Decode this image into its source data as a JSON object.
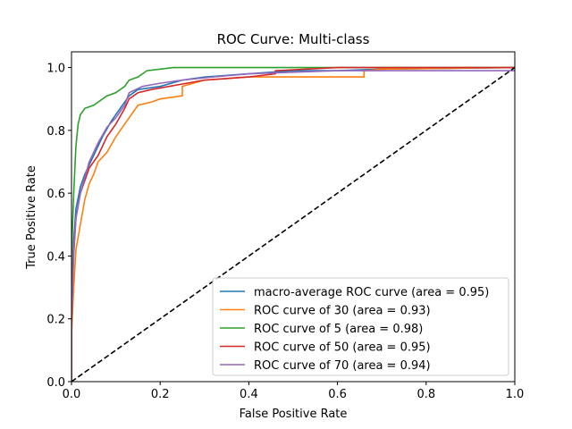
{
  "chart_data": {
    "type": "line",
    "title": "ROC Curve: Multi-class",
    "xlabel": "False Positive Rate",
    "ylabel": "True Positive Rate",
    "xlim": [
      0.0,
      1.0
    ],
    "ylim": [
      0.0,
      1.05
    ],
    "xticks": [
      "0.0",
      "0.2",
      "0.4",
      "0.6",
      "0.8",
      "1.0"
    ],
    "yticks": [
      "0.0",
      "0.2",
      "0.4",
      "0.6",
      "0.8",
      "1.0"
    ],
    "xtick_values": [
      0.0,
      0.2,
      0.4,
      0.6,
      0.8,
      1.0
    ],
    "ytick_values": [
      0.0,
      0.2,
      0.4,
      0.6,
      0.8,
      1.0
    ],
    "grid": false,
    "legend_position": "bottom-right",
    "diagonal": {
      "x": [
        0,
        1
      ],
      "y": [
        0,
        1
      ],
      "color": "#000000",
      "style": "dashed"
    },
    "series": [
      {
        "name": "macro-average ROC curve (area = 0.95)",
        "color": "#1f77b4",
        "points": [
          [
            0,
            0
          ],
          [
            0,
            0.3
          ],
          [
            0.005,
            0.45
          ],
          [
            0.01,
            0.55
          ],
          [
            0.02,
            0.62
          ],
          [
            0.03,
            0.66
          ],
          [
            0.05,
            0.72
          ],
          [
            0.07,
            0.78
          ],
          [
            0.09,
            0.83
          ],
          [
            0.11,
            0.87
          ],
          [
            0.13,
            0.91
          ],
          [
            0.15,
            0.93
          ],
          [
            0.2,
            0.94
          ],
          [
            0.25,
            0.96
          ],
          [
            0.3,
            0.97
          ],
          [
            0.4,
            0.98
          ],
          [
            0.5,
            0.99
          ],
          [
            0.6,
            0.99
          ],
          [
            0.7,
            0.995
          ],
          [
            1,
            1
          ]
        ]
      },
      {
        "name": "ROC curve of 30 (area = 0.93)",
        "color": "#ff7f0e",
        "points": [
          [
            0,
            0
          ],
          [
            0,
            0.15
          ],
          [
            0.005,
            0.3
          ],
          [
            0.01,
            0.42
          ],
          [
            0.02,
            0.5
          ],
          [
            0.03,
            0.58
          ],
          [
            0.04,
            0.63
          ],
          [
            0.05,
            0.66
          ],
          [
            0.06,
            0.7
          ],
          [
            0.08,
            0.73
          ],
          [
            0.1,
            0.78
          ],
          [
            0.12,
            0.82
          ],
          [
            0.14,
            0.86
          ],
          [
            0.15,
            0.88
          ],
          [
            0.18,
            0.89
          ],
          [
            0.2,
            0.9
          ],
          [
            0.25,
            0.91
          ],
          [
            0.25,
            0.94
          ],
          [
            0.3,
            0.96
          ],
          [
            0.4,
            0.97
          ],
          [
            0.5,
            0.97
          ],
          [
            0.66,
            0.97
          ],
          [
            0.66,
            0.99
          ],
          [
            0.7,
            0.995
          ],
          [
            1,
            1
          ]
        ]
      },
      {
        "name": "ROC curve of 5 (area = 0.98)",
        "color": "#2ca02c",
        "points": [
          [
            0,
            0
          ],
          [
            0,
            0.4
          ],
          [
            0.005,
            0.6
          ],
          [
            0.01,
            0.75
          ],
          [
            0.015,
            0.82
          ],
          [
            0.02,
            0.85
          ],
          [
            0.03,
            0.87
          ],
          [
            0.05,
            0.88
          ],
          [
            0.06,
            0.89
          ],
          [
            0.08,
            0.91
          ],
          [
            0.1,
            0.92
          ],
          [
            0.12,
            0.94
          ],
          [
            0.13,
            0.96
          ],
          [
            0.15,
            0.97
          ],
          [
            0.17,
            0.99
          ],
          [
            0.23,
            1.0
          ],
          [
            0.6,
            1.0
          ],
          [
            1,
            1
          ]
        ]
      },
      {
        "name": "ROC curve of 50 (area = 0.95)",
        "color": "#d62728",
        "points": [
          [
            0,
            0
          ],
          [
            0,
            0.2
          ],
          [
            0.005,
            0.42
          ],
          [
            0.01,
            0.52
          ],
          [
            0.02,
            0.6
          ],
          [
            0.03,
            0.64
          ],
          [
            0.04,
            0.68
          ],
          [
            0.06,
            0.72
          ],
          [
            0.08,
            0.78
          ],
          [
            0.1,
            0.82
          ],
          [
            0.12,
            0.87
          ],
          [
            0.13,
            0.9
          ],
          [
            0.15,
            0.92
          ],
          [
            0.18,
            0.93
          ],
          [
            0.22,
            0.94
          ],
          [
            0.26,
            0.95
          ],
          [
            0.3,
            0.96
          ],
          [
            0.4,
            0.97
          ],
          [
            0.46,
            0.98
          ],
          [
            0.46,
            0.99
          ],
          [
            0.6,
            1.0
          ],
          [
            1,
            1
          ]
        ]
      },
      {
        "name": "ROC curve of 70 (area = 0.94)",
        "color": "#9467bd",
        "points": [
          [
            0,
            0
          ],
          [
            0,
            0.2
          ],
          [
            0.005,
            0.4
          ],
          [
            0.01,
            0.52
          ],
          [
            0.02,
            0.6
          ],
          [
            0.03,
            0.65
          ],
          [
            0.04,
            0.7
          ],
          [
            0.06,
            0.76
          ],
          [
            0.08,
            0.81
          ],
          [
            0.1,
            0.84
          ],
          [
            0.12,
            0.88
          ],
          [
            0.13,
            0.92
          ],
          [
            0.16,
            0.94
          ],
          [
            0.2,
            0.95
          ],
          [
            0.25,
            0.96
          ],
          [
            0.32,
            0.97
          ],
          [
            0.4,
            0.98
          ],
          [
            0.5,
            0.985
          ],
          [
            0.6,
            0.99
          ],
          [
            1,
            0.99
          ]
        ]
      }
    ]
  }
}
